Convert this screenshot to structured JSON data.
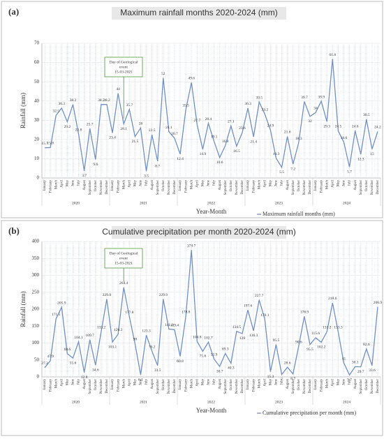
{
  "chart_data": [
    {
      "type": "line",
      "panel": "(a)",
      "title": "Maximum rainfall months 2020-2024 (mm)",
      "x_label": "Year-Month",
      "y_label": "Rainfall (mm)",
      "categories": [
        "January",
        "February",
        "March",
        "April",
        "May",
        "June",
        "July",
        "August",
        "September",
        "October",
        "November",
        "December",
        "January",
        "February",
        "March",
        "April",
        "May",
        "June",
        "July",
        "August",
        "September",
        "October",
        "November",
        "December",
        "January",
        "February",
        "March",
        "April",
        "May",
        "June",
        "July",
        "August",
        "September",
        "October",
        "November",
        "December",
        "January",
        "February",
        "March",
        "April",
        "May",
        "June",
        "July",
        "August",
        "September",
        "October",
        "November",
        "December",
        "January",
        "February",
        "March",
        "April",
        "May",
        "June",
        "July",
        "August",
        "September",
        "October",
        "November",
        "December"
      ],
      "years": [
        "2020",
        "2021",
        "2022",
        "2023",
        "2024"
      ],
      "series": [
        {
          "name": "Maximum rainfall months (mm)",
          "color": "#6f8fc7",
          "values": [
            15.7,
            15.8,
            32.5,
            36.3,
            29.2,
            38.2,
            22.8,
            3.7,
            25.7,
            9.6,
            38.2,
            38.2,
            23.4,
            44,
            28.1,
            35.7,
            21.5,
            26,
            3.5,
            22.5,
            8.7,
            52,
            24.1,
            20.7,
            12.4,
            35.5,
            49.6,
            27.7,
            14.9,
            28.4,
            19.1,
            10.6,
            16.8,
            27.1,
            16.5,
            23.6,
            36.3,
            21.4,
            39.5,
            33.2,
            24.9,
            10.3,
            5.5,
            21.6,
            7.2,
            18.3,
            39.7,
            32,
            34,
            39.9,
            29.3,
            61.8,
            24.5,
            18.6,
            5.7,
            24.6,
            12.3,
            30.5,
            15,
            24.2
          ]
        }
      ],
      "annotation": [
        "Day of Geological",
        "event",
        "15-03-2021"
      ],
      "ylim": [
        0,
        70
      ],
      "yticks": [
        0,
        10,
        20,
        30,
        40,
        50,
        60,
        70
      ]
    },
    {
      "type": "line",
      "panel": "(b)",
      "title": "Cumulative precipitation per month 2020-2024 (mm)",
      "x_label": "Year-Month",
      "y_label": "Rainfall (mm)",
      "categories": [
        "January",
        "February",
        "March",
        "April",
        "May",
        "June",
        "July",
        "August",
        "September",
        "October",
        "November",
        "December",
        "January",
        "February",
        "March",
        "April",
        "May",
        "June",
        "July",
        "August",
        "September",
        "October",
        "November",
        "December",
        "January",
        "February",
        "March",
        "April",
        "May",
        "June",
        "July",
        "August",
        "September",
        "October",
        "November",
        "December",
        "January",
        "February",
        "March",
        "April",
        "May",
        "June",
        "July",
        "August",
        "September",
        "October",
        "November",
        "December",
        "January",
        "February",
        "March",
        "April",
        "May",
        "June",
        "July",
        "August",
        "September",
        "October",
        "November",
        "December"
      ],
      "years": [
        "2020",
        "2021",
        "2022",
        "2023",
        "2024"
      ],
      "series": [
        {
          "name": "Cumulative precipitation per month (mm)",
          "color": "#6f8fc7",
          "values": [
            27.2,
            47.9,
            171.5,
            205.9,
            68.6,
            55.6,
            104.1,
            12.8,
            109.7,
            34.6,
            133.2,
            229.8,
            103.1,
            126.3,
            264.4,
            177.8,
            98,
            6.1,
            123.3,
            76.2,
            33.5,
            229.9,
            141.2,
            139.4,
            60.8,
            178.8,
            374.7,
            104.8,
            75.6,
            102.7,
            52.9,
            30.7,
            69.3,
            40.3,
            134.5,
            128,
            197.6,
            136.3,
            227.7,
            170.1,
            15.3,
            95.5,
            7,
            28.6,
            8.7,
            90.6,
            178.9,
            95.5,
            115.6,
            102.2,
            133.2,
            218.6,
            133.3,
            41,
            5.7,
            30.1,
            29.7,
            82.6,
            33.6,
            206.9
          ]
        }
      ],
      "annotation": [
        "Day of Geological",
        "event",
        "15-03-2021"
      ],
      "ylim": [
        0,
        400
      ],
      "yticks": [
        0,
        50,
        100,
        150,
        200,
        250,
        300,
        350,
        400
      ]
    }
  ]
}
